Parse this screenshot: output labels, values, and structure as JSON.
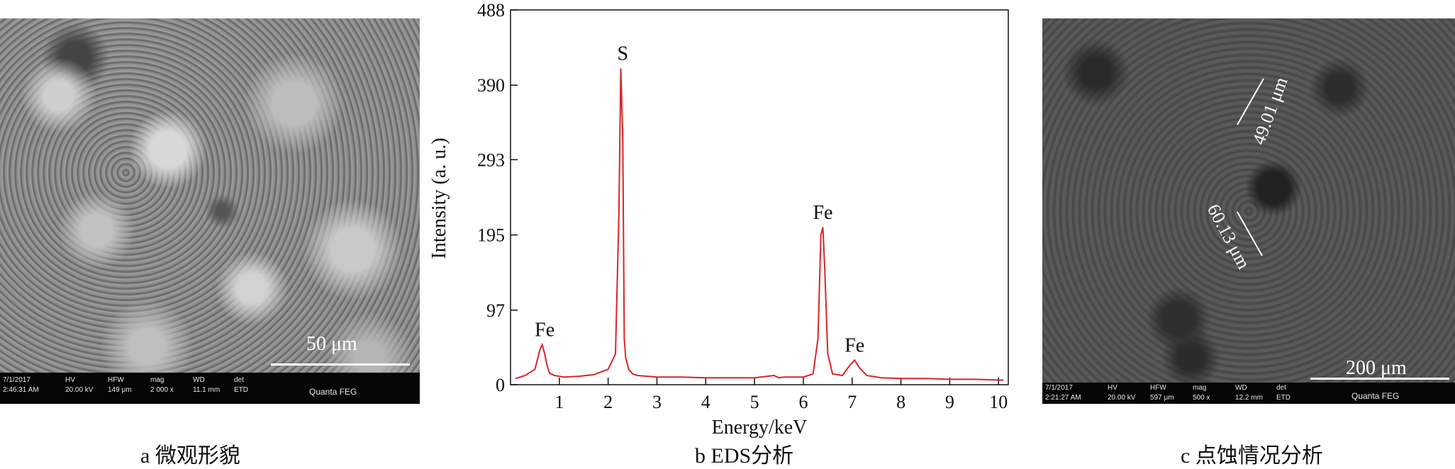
{
  "panel_a": {
    "info": {
      "date": "7/1/2017",
      "time": "2:46:31 AM",
      "hv_label": "HV",
      "hv": "20.00 kV",
      "hfw_label": "HFW",
      "hfw": "149 μm",
      "mag_label": "mag",
      "mag": "2 000 x",
      "wd_label": "WD",
      "wd": "11.1 mm",
      "det_label": "det",
      "det": "ETD",
      "instrument": "Quanta FEG"
    },
    "scale": "50 μm",
    "caption": "a  微观形貌"
  },
  "panel_c": {
    "info": {
      "date": "7/1/2017",
      "time": "2:21:27 AM",
      "hv_label": "HV",
      "hv": "20.00 kV",
      "hfw_label": "HFW",
      "hfw": "597 μm",
      "mag_label": "mag",
      "mag": "500 x",
      "wd_label": "WD",
      "wd": "12.2 mm",
      "det_label": "det",
      "det": "ETD",
      "instrument": "Quanta FEG"
    },
    "scale": "200 μm",
    "measurements": [
      "49.01 μm",
      "60.13 μm"
    ],
    "caption": "c  点蚀情况分析"
  },
  "chart_data": {
    "type": "line",
    "title": "",
    "caption": "b  EDS分析",
    "xlabel": "Energy/keV",
    "ylabel": "Intensity (a. u.)",
    "xlim": [
      0,
      10.2
    ],
    "ylim": [
      0,
      488
    ],
    "xticks": [
      1,
      2,
      3,
      4,
      5,
      6,
      7,
      8,
      9,
      10
    ],
    "yticks": [
      0,
      97,
      195,
      293,
      390,
      488
    ],
    "grid": false,
    "series": [
      {
        "color": "#d9252a",
        "x": [
          0.1,
          0.3,
          0.5,
          0.6,
          0.65,
          0.7,
          0.75,
          0.8,
          0.9,
          1.1,
          1.4,
          1.7,
          2.0,
          2.15,
          2.22,
          2.26,
          2.3,
          2.33,
          2.36,
          2.42,
          2.5,
          2.6,
          3.0,
          3.5,
          4.0,
          4.5,
          5.0,
          5.4,
          5.5,
          5.6,
          6.0,
          6.2,
          6.3,
          6.36,
          6.4,
          6.44,
          6.5,
          6.6,
          6.8,
          6.95,
          7.05,
          7.15,
          7.3,
          7.6,
          8.0,
          8.5,
          9.0,
          9.5,
          10.0,
          10.1
        ],
        "y": [
          8,
          12,
          20,
          45,
          52,
          40,
          25,
          15,
          12,
          10,
          11,
          13,
          20,
          40,
          220,
          412,
          320,
          60,
          35,
          20,
          14,
          12,
          10,
          10,
          9,
          9,
          9,
          12,
          9,
          10,
          10,
          14,
          60,
          195,
          205,
          150,
          40,
          14,
          12,
          25,
          32,
          22,
          12,
          9,
          8,
          8,
          7,
          7,
          6,
          6
        ]
      }
    ],
    "annotations": [
      {
        "text": "Fe",
        "x": 0.7,
        "y": 52
      },
      {
        "text": "S",
        "x": 2.3,
        "y": 412
      },
      {
        "text": "Fe",
        "x": 6.4,
        "y": 205
      },
      {
        "text": "Fe",
        "x": 7.05,
        "y": 32
      }
    ]
  }
}
